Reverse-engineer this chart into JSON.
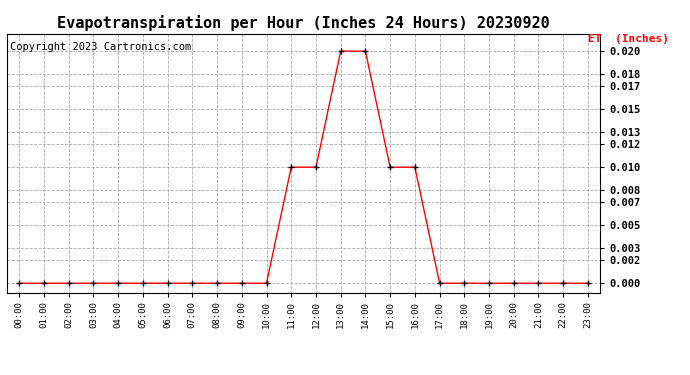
{
  "title": "Evapotranspiration per Hour (Inches 24 Hours) 20230920",
  "copyright": "Copyright 2023 Cartronics.com",
  "legend_label": "ET  (Inches)",
  "x_labels": [
    "00:00",
    "01:00",
    "02:00",
    "03:00",
    "04:00",
    "05:00",
    "06:00",
    "07:00",
    "08:00",
    "09:00",
    "10:00",
    "11:00",
    "12:00",
    "13:00",
    "14:00",
    "15:00",
    "16:00",
    "17:00",
    "18:00",
    "19:00",
    "20:00",
    "21:00",
    "22:00",
    "23:00"
  ],
  "y_values": [
    0.0,
    0.0,
    0.0,
    0.0,
    0.0,
    0.0,
    0.0,
    0.0,
    0.0,
    0.0,
    0.0,
    0.01,
    0.01,
    0.02,
    0.02,
    0.01,
    0.01,
    0.0,
    0.0,
    0.0,
    0.0,
    0.0,
    0.0,
    0.0
  ],
  "line_color": "#ff0000",
  "marker_color": "#000000",
  "grid_color": "#aaaaaa",
  "background_color": "#ffffff",
  "title_fontsize": 11,
  "copyright_fontsize": 7.5,
  "legend_color": "#ff0000",
  "yticks": [
    0.0,
    0.002,
    0.003,
    0.005,
    0.007,
    0.008,
    0.01,
    0.012,
    0.013,
    0.015,
    0.017,
    0.018,
    0.02
  ],
  "ylim": [
    -0.0008,
    0.0215
  ]
}
